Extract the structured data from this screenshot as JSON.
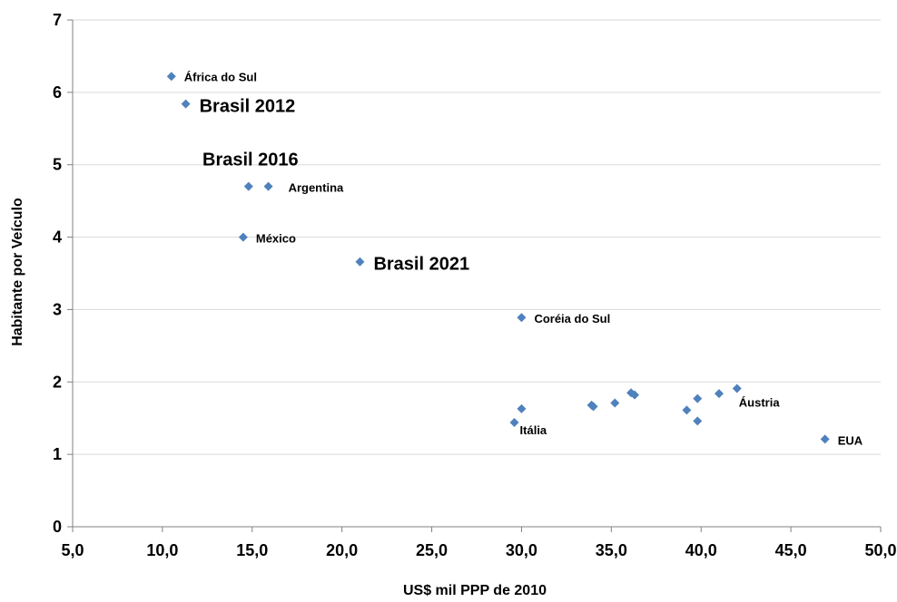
{
  "chart_data": {
    "type": "scatter",
    "xlabel": "US$ mil PPP de 2010",
    "ylabel": "Habitante por Veículo",
    "xlim": [
      5,
      50
    ],
    "ylim": [
      0,
      7
    ],
    "x_ticks": [
      "5,0",
      "10,0",
      "15,0",
      "20,0",
      "25,0",
      "30,0",
      "35,0",
      "40,0",
      "45,0",
      "50,0"
    ],
    "y_ticks": [
      "0",
      "1",
      "2",
      "3",
      "4",
      "5",
      "6",
      "7"
    ],
    "grid": "horizontal",
    "marker": "diamond",
    "marker_color": "#4F81BD",
    "points": [
      {
        "x": 10.5,
        "y": 6.22,
        "label": "África do Sul"
      },
      {
        "x": 11.3,
        "y": 5.84,
        "label": "Brasil 2012",
        "emphasis": true
      },
      {
        "x": 14.8,
        "y": 4.7,
        "label": "Brasil 2016",
        "emphasis": true
      },
      {
        "x": 15.9,
        "y": 4.7,
        "label": "Argentina"
      },
      {
        "x": 14.5,
        "y": 4.0,
        "label": "México"
      },
      {
        "x": 21.0,
        "y": 3.66,
        "label": "Brasil 2021",
        "emphasis": true
      },
      {
        "x": 30.0,
        "y": 2.89,
        "label": "Coréia do Sul"
      },
      {
        "x": 29.6,
        "y": 1.44,
        "label": "Itália"
      },
      {
        "x": 30.0,
        "y": 1.63,
        "label": ""
      },
      {
        "x": 33.9,
        "y": 1.68,
        "label": ""
      },
      {
        "x": 34.0,
        "y": 1.66,
        "label": ""
      },
      {
        "x": 35.2,
        "y": 1.71,
        "label": ""
      },
      {
        "x": 36.1,
        "y": 1.85,
        "label": ""
      },
      {
        "x": 36.3,
        "y": 1.82,
        "label": ""
      },
      {
        "x": 39.2,
        "y": 1.61,
        "label": ""
      },
      {
        "x": 39.8,
        "y": 1.77,
        "label": ""
      },
      {
        "x": 39.8,
        "y": 1.46,
        "label": ""
      },
      {
        "x": 41.0,
        "y": 1.84,
        "label": ""
      },
      {
        "x": 42.0,
        "y": 1.91,
        "label": "Áustria"
      },
      {
        "x": 46.9,
        "y": 1.21,
        "label": "EUA"
      }
    ]
  }
}
